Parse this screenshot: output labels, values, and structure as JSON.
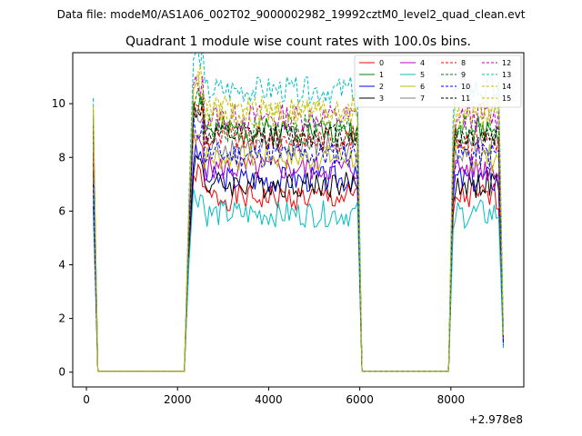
{
  "chart_data": {
    "type": "line",
    "suptitle": "Data file: modeM0/AS1A06_002T02_9000002982_19992cztM0_level2_quad_clean.evt",
    "title": "Quadrant 1 module wise count rates with 100.0s bins.",
    "xlabel": "",
    "ylabel": "",
    "x_offset_label": "+2.978e8",
    "xlim": [
      -300,
      9600
    ],
    "ylim": [
      -0.55,
      11.9
    ],
    "xticks": [
      0,
      2000,
      4000,
      6000,
      8000
    ],
    "yticks": [
      0,
      2,
      4,
      6,
      8,
      10
    ],
    "grid": false,
    "legend_position": "top-right",
    "bin_seconds": 100,
    "segments": [
      {
        "t_start": 150,
        "t_end": 250,
        "state": "falling"
      },
      {
        "t_start": 250,
        "t_end": 2150,
        "state": "off"
      },
      {
        "t_start": 2250,
        "t_end": 5950,
        "state": "on"
      },
      {
        "t_start": 6050,
        "t_end": 7950,
        "state": "off"
      },
      {
        "t_start": 8050,
        "t_end": 9150,
        "state": "on"
      }
    ],
    "series": [
      {
        "name": "0",
        "color": "#ff0000",
        "dash": false,
        "level": 6.5,
        "start": 7.8,
        "end": 1.2,
        "seed": 1
      },
      {
        "name": "1",
        "color": "#008000",
        "dash": false,
        "level": 9.0,
        "start": 9.6,
        "end": 1.3,
        "seed": 2
      },
      {
        "name": "2",
        "color": "#0000ff",
        "dash": false,
        "level": 7.2,
        "start": 6.2,
        "end": 1.1,
        "seed": 3
      },
      {
        "name": "3",
        "color": "#000000",
        "dash": false,
        "level": 7.0,
        "start": 7.5,
        "end": 1.4,
        "seed": 4
      },
      {
        "name": "4",
        "color": "#bf00bf",
        "dash": false,
        "level": 7.6,
        "start": 8.2,
        "end": 1.2,
        "seed": 5
      },
      {
        "name": "5",
        "color": "#00bfbf",
        "dash": false,
        "level": 5.9,
        "start": 6.6,
        "end": 0.9,
        "seed": 6
      },
      {
        "name": "6",
        "color": "#bfbf00",
        "dash": false,
        "level": 8.0,
        "start": 8.6,
        "end": 1.3,
        "seed": 7
      },
      {
        "name": "7",
        "color": "#808080",
        "dash": false,
        "level": 8.4,
        "start": 8.9,
        "end": 1.5,
        "seed": 8
      },
      {
        "name": "8",
        "color": "#ff0000",
        "dash": true,
        "level": 8.7,
        "start": 9.0,
        "end": 1.2,
        "seed": 9
      },
      {
        "name": "9",
        "color": "#008000",
        "dash": true,
        "level": 9.1,
        "start": 9.4,
        "end": 1.4,
        "seed": 10
      },
      {
        "name": "10",
        "color": "#0000ff",
        "dash": true,
        "level": 8.1,
        "start": 7.0,
        "end": 1.0,
        "seed": 11
      },
      {
        "name": "11",
        "color": "#000000",
        "dash": true,
        "level": 8.8,
        "start": 9.2,
        "end": 1.3,
        "seed": 12
      },
      {
        "name": "12",
        "color": "#bf00bf",
        "dash": true,
        "level": 9.5,
        "start": 9.7,
        "end": 1.4,
        "seed": 13
      },
      {
        "name": "13",
        "color": "#00bfbf",
        "dash": true,
        "level": 10.5,
        "start": 10.2,
        "end": 1.5,
        "seed": 14
      },
      {
        "name": "14",
        "color": "#bfbf00",
        "dash": true,
        "level": 9.6,
        "start": 9.8,
        "end": 1.4,
        "seed": 15
      },
      {
        "name": "15",
        "color": "#bfbf00",
        "dash": true,
        "level": 9.8,
        "start": 9.9,
        "end": 1.3,
        "seed": 16
      }
    ]
  }
}
